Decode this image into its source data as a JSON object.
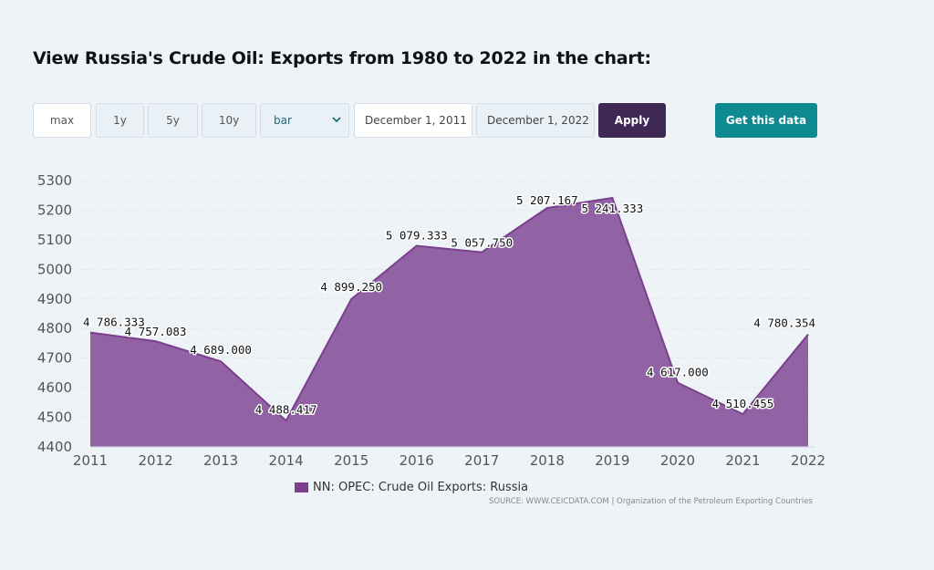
{
  "page": {
    "title": "View Russia's Crude Oil: Exports from 1980 to 2022 in the chart:"
  },
  "controls": {
    "range_buttons": [
      "max",
      "1y",
      "5y",
      "10y"
    ],
    "chart_type_value": "bar",
    "date_from": "December 1, 2011",
    "date_to": "December 1, 2022",
    "apply_label": "Apply",
    "get_data_label": "Get this data",
    "apply_color": "#3f2756",
    "get_data_color": "#0f8a91"
  },
  "legend": {
    "label": "NN: OPEC: Crude Oil Exports: Russia",
    "color": "#7b3f8e"
  },
  "source": "SOURCE: WWW.CEICDATA.COM | Organization of the Petroleum Exporting Countries",
  "chart_data": {
    "type": "area",
    "x": [
      "2011",
      "2012",
      "2013",
      "2014",
      "2015",
      "2016",
      "2017",
      "2018",
      "2019",
      "2020",
      "2021",
      "2022"
    ],
    "series": [
      {
        "name": "NN: OPEC: Crude Oil Exports: Russia",
        "values": [
          4786.333,
          4757.083,
          4689.0,
          4488.417,
          4899.25,
          5079.333,
          5057.75,
          5207.167,
          5241.333,
          4617.0,
          4510.455,
          4780.354
        ],
        "labels": [
          "4 786.333",
          "4 757.083",
          "4 689.000",
          "4 488.417",
          "4 899.250",
          "5 079.333",
          "5 057.750",
          "5 207.167",
          "5 241.333",
          "4 617.000",
          "4 510.455",
          "4 780.354"
        ],
        "color": "#7b3f8e"
      }
    ],
    "yticks": [
      "4400",
      "4500",
      "4600",
      "4700",
      "4800",
      "4900",
      "5000",
      "5100",
      "5200",
      "5300"
    ],
    "ylim": [
      4400,
      5300
    ],
    "grid": true,
    "legend_position": "bottom-center"
  }
}
